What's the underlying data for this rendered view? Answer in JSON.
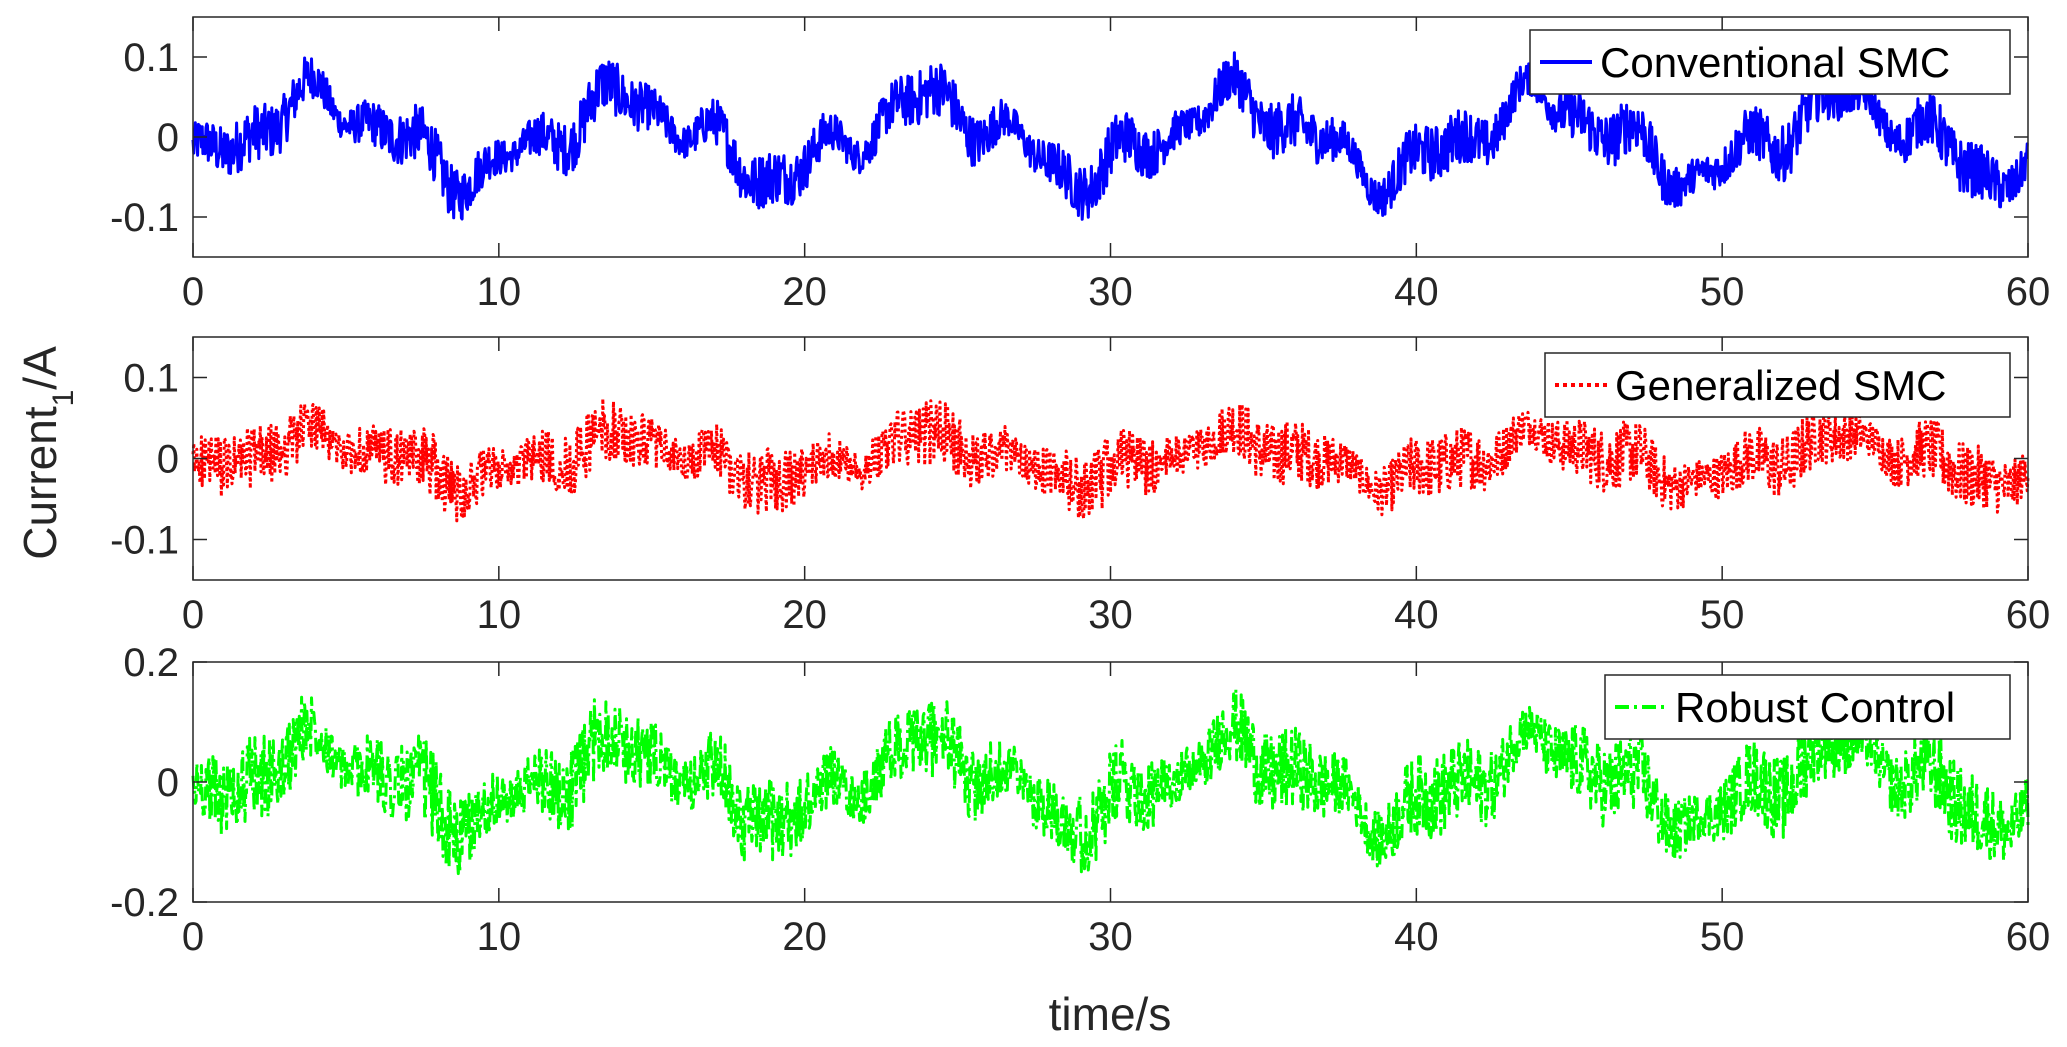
{
  "chart_data": [
    {
      "type": "line",
      "xlim": [
        0,
        60
      ],
      "ylim": [
        -0.15,
        0.15
      ],
      "x_ticks": [
        "0",
        "10",
        "20",
        "30",
        "40",
        "50",
        "60"
      ],
      "y_ticks": [
        {
          "value": 0.1,
          "label": "0.1"
        },
        {
          "value": 0,
          "label": "0"
        },
        {
          "value": -0.1,
          "label": "-0.1"
        }
      ],
      "legend": "top-right",
      "series": [
        {
          "name": "Conventional SMC",
          "color": "#0000ff",
          "line_style": "solid",
          "envelope": {
            "base_amplitude": 0.055,
            "period_s": 10,
            "noise_amplitude": 0.035
          }
        }
      ]
    },
    {
      "type": "line",
      "xlim": [
        0,
        60
      ],
      "ylim": [
        -0.15,
        0.15
      ],
      "x_ticks": [
        "0",
        "10",
        "20",
        "30",
        "40",
        "50",
        "60"
      ],
      "y_ticks": [
        {
          "value": 0.1,
          "label": "0.1"
        },
        {
          "value": 0,
          "label": "0"
        },
        {
          "value": -0.1,
          "label": "-0.1"
        }
      ],
      "legend": "top-right",
      "series": [
        {
          "name": "Generalized SMC",
          "color": "#ff0000",
          "line_style": "dotted",
          "envelope": {
            "base_amplitude": 0.03,
            "period_s": 10,
            "noise_amplitude": 0.04
          }
        }
      ]
    },
    {
      "type": "line",
      "xlim": [
        0,
        60
      ],
      "ylim": [
        -0.2,
        0.2
      ],
      "x_ticks": [
        "0",
        "10",
        "20",
        "30",
        "40",
        "50",
        "60"
      ],
      "y_ticks": [
        {
          "value": 0.2,
          "label": "0.2"
        },
        {
          "value": 0,
          "label": "0"
        },
        {
          "value": -0.2,
          "label": "-0.2"
        }
      ],
      "legend": "top-right",
      "series": [
        {
          "name": "Robust Control",
          "color": "#00ff00",
          "line_style": "dash-dot",
          "envelope": {
            "base_amplitude": 0.07,
            "period_s": 10,
            "noise_amplitude": 0.07
          }
        }
      ]
    }
  ],
  "labels": {
    "ylabel_main": "Current",
    "ylabel_subscript": "1",
    "ylabel_unit": "/A",
    "xlabel": "time/s"
  }
}
